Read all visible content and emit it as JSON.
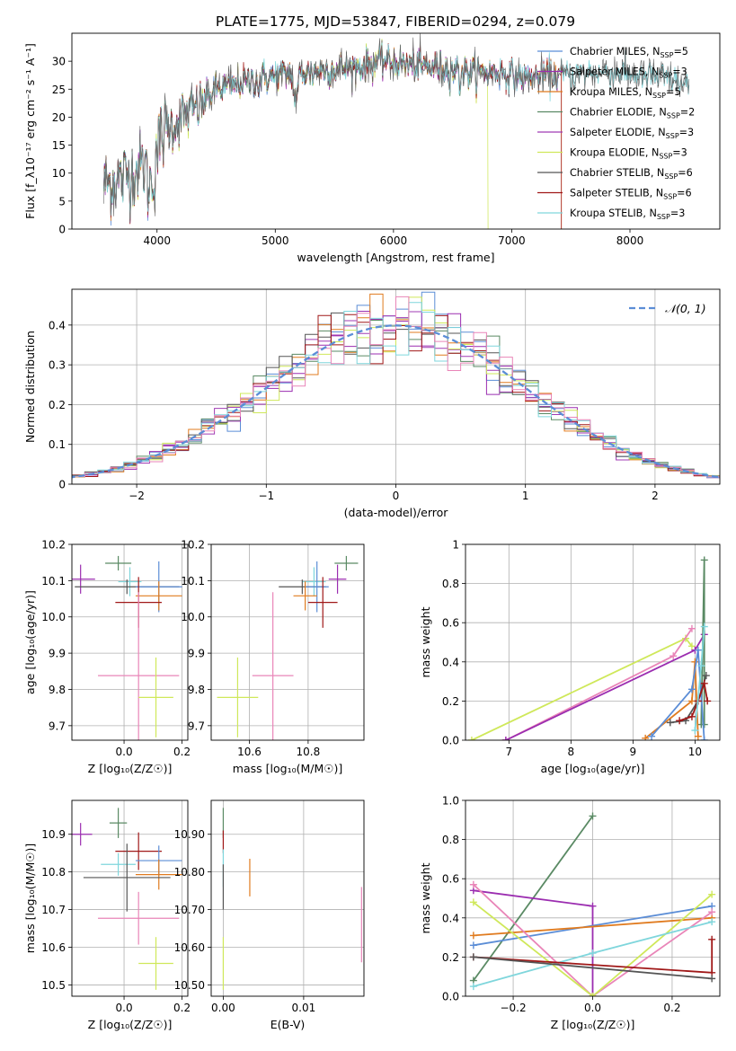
{
  "figure": {
    "title": "PLATE=1775, MJD=53847, FIBERID=0294, z=0.079"
  },
  "colors": {
    "Chabrier MILES": "#5b8dd6",
    "Salpeter MILES": "#9b2db0",
    "Kroupa MILES": "#e07b1f",
    "Chabrier ELODIE": "#5a8a64",
    "Salpeter ELODIE": "#a03bb4",
    "Kroupa ELODIE": "#cfe85a",
    "Chabrier STELIB": "#555555",
    "Salpeter STELIB": "#a01818",
    "Kroupa STELIB": "#7fd6dc",
    "pink": "#e985b8",
    "gauss": "#5b8dd6"
  },
  "chart_data": [
    {
      "id": "spectrum",
      "type": "line",
      "xlabel": "wavelength [Angstrom, rest frame]",
      "ylabel": "Flux [f_λ10⁻¹⁷ erg cm⁻² s⁻¹ A⁻¹]",
      "xlim": [
        3280,
        8760
      ],
      "ylim": [
        0,
        35
      ],
      "xticks": [
        4000,
        5000,
        6000,
        7000,
        8000
      ],
      "yticks": [
        0,
        5,
        10,
        15,
        20,
        25,
        30
      ],
      "legend_position": "upper-right",
      "legend": [
        {
          "text": "Chabrier MILES, N",
          "sub": "SSP",
          "suffix": "=5",
          "color": "#5b8dd6"
        },
        {
          "text": "Salpeter MILES, N",
          "sub": "SSP",
          "suffix": "=3",
          "color": "#9b2db0"
        },
        {
          "text": "Kroupa MILES, N",
          "sub": "SSP",
          "suffix": "=5",
          "color": "#e07b1f"
        },
        {
          "text": "Chabrier ELODIE, N",
          "sub": "SSP",
          "suffix": "=2",
          "color": "#5a8a64"
        },
        {
          "text": "Salpeter ELODIE, N",
          "sub": "SSP",
          "suffix": "=3",
          "color": "#a03bb4"
        },
        {
          "text": "Kroupa ELODIE, N",
          "sub": "SSP",
          "suffix": "=3",
          "color": "#cfe85a"
        },
        {
          "text": "Chabrier STELIB, N",
          "sub": "SSP",
          "suffix": "=6",
          "color": "#555555"
        },
        {
          "text": "Salpeter STELIB, N",
          "sub": "SSP",
          "suffix": "=6",
          "color": "#a01818"
        },
        {
          "text": "Kroupa STELIB, N",
          "sub": "SSP",
          "suffix": "=3",
          "color": "#7fd6dc"
        }
      ],
      "continuum": {
        "x": [
          3550,
          3700,
          3850,
          3950,
          4050,
          4200,
          4350,
          4500,
          4700,
          4900,
          5100,
          5300,
          5500,
          5700,
          5900,
          6100,
          6300,
          6500,
          6700,
          6900,
          7100,
          7300,
          7500,
          7700,
          7900,
          8100,
          8300,
          8500
        ],
        "y": [
          8,
          9,
          11,
          12,
          17,
          20,
          22,
          25,
          26,
          27,
          27.5,
          28,
          28.5,
          29,
          30,
          29.5,
          29,
          28.5,
          28,
          28,
          27,
          27.5,
          27.5,
          28,
          28,
          27.5,
          27,
          25.5
        ]
      },
      "model_range": [
        3550,
        8500
      ],
      "models": [
        {
          "name": "Chabrier MILES",
          "drop_at": null,
          "xmax": 7400
        },
        {
          "name": "Salpeter MILES",
          "drop_at": null,
          "xmax": 7400
        },
        {
          "name": "Kroupa MILES",
          "drop_at": 7420,
          "xmax": 7420
        },
        {
          "name": "Chabrier ELODIE",
          "drop_at": null,
          "xmax": 6800
        },
        {
          "name": "Salpeter ELODIE",
          "drop_at": null,
          "xmax": 6800
        },
        {
          "name": "Kroupa ELODIE",
          "drop_at": 6800,
          "xmax": 6800
        },
        {
          "name": "Chabrier STELIB",
          "drop_at": null,
          "xmax": 8500
        },
        {
          "name": "Salpeter STELIB",
          "drop_at": 7420,
          "xmax": 7420
        },
        {
          "name": "Kroupa STELIB",
          "drop_at": null,
          "xmax": 8500
        }
      ]
    },
    {
      "id": "residuals",
      "type": "line",
      "xlabel": "(data-model)/error",
      "ylabel": "Normed distribution",
      "xlim": [
        -2.5,
        2.5
      ],
      "ylim": [
        0,
        0.49
      ],
      "xticks": [
        -2,
        -1,
        0,
        1,
        2
      ],
      "yticks": [
        0,
        0.1,
        0.2,
        0.3,
        0.4
      ],
      "grid": true,
      "legend_position": "upper-right",
      "gauss_label": "𝒩(0, 1)",
      "bin_width": 0.1,
      "series_colors": [
        "#5b8dd6",
        "#9b2db0",
        "#e07b1f",
        "#5a8a64",
        "#a03bb4",
        "#cfe85a",
        "#555555",
        "#a01818",
        "#7fd6dc",
        "#e985b8"
      ]
    },
    {
      "id": "age_vs_Z",
      "type": "scatter",
      "xlabel": "Z [log₁₀(Z/Z☉)]",
      "ylabel": "age  [log₁₀(age/yr)]",
      "xlim": [
        -0.18,
        0.22
      ],
      "ylim": [
        9.66,
        10.2
      ],
      "xticks": [
        0.0,
        0.2
      ],
      "yticks": [
        9.7,
        9.8,
        9.9,
        10.0,
        10.1,
        10.2
      ],
      "grid": true,
      "points": [
        {
          "x": -0.02,
          "y": 10.148,
          "xerr": 0.045,
          "yerr": 0.02,
          "color": "#5a8a64"
        },
        {
          "x": -0.15,
          "y": 10.104,
          "xerr": 0.05,
          "yerr": 0.04,
          "color": "#9b2db0"
        },
        {
          "x": 0.02,
          "y": 10.097,
          "xerr": 0.04,
          "yerr": 0.04,
          "color": "#7fd6dc"
        },
        {
          "x": 0.01,
          "y": 10.083,
          "xerr": 0.18,
          "yerr": 0.02,
          "color": "#555555"
        },
        {
          "x": 0.12,
          "y": 10.083,
          "xerr": 0.08,
          "yerr": 0.07,
          "color": "#5b8dd6"
        },
        {
          "x": 0.12,
          "y": 10.058,
          "xerr": 0.08,
          "yerr": 0.04,
          "color": "#e07b1f"
        },
        {
          "x": 0.05,
          "y": 10.04,
          "xerr": 0.08,
          "yerr": 0.07,
          "color": "#a01818"
        },
        {
          "x": 0.05,
          "y": 9.838,
          "xerr": 0.14,
          "yerr": 0.23,
          "color": "#e985b8"
        },
        {
          "x": 0.11,
          "y": 9.778,
          "xerr": 0.06,
          "yerr": 0.11,
          "color": "#cfe85a"
        }
      ]
    },
    {
      "id": "age_vs_mass",
      "type": "scatter",
      "xlabel": "mass [log₁₀(M/M☉)]",
      "ylabel": "",
      "xlim": [
        10.47,
        10.99
      ],
      "ylim": [
        9.66,
        10.2
      ],
      "xticks": [
        10.6,
        10.8
      ],
      "yticks": [
        9.7,
        9.8,
        9.9,
        10.0,
        10.1,
        10.2
      ],
      "grid": true,
      "points": [
        {
          "x": 10.93,
          "y": 10.148,
          "xerr": 0.04,
          "yerr": 0.02,
          "color": "#5a8a64"
        },
        {
          "x": 10.9,
          "y": 10.104,
          "xerr": 0.03,
          "yerr": 0.04,
          "color": "#9b2db0"
        },
        {
          "x": 10.82,
          "y": 10.097,
          "xerr": 0.04,
          "yerr": 0.04,
          "color": "#7fd6dc"
        },
        {
          "x": 10.78,
          "y": 10.083,
          "xerr": 0.08,
          "yerr": 0.02,
          "color": "#555555"
        },
        {
          "x": 10.83,
          "y": 10.083,
          "xerr": 0.04,
          "yerr": 0.07,
          "color": "#5b8dd6"
        },
        {
          "x": 10.79,
          "y": 10.058,
          "xerr": 0.04,
          "yerr": 0.04,
          "color": "#e07b1f"
        },
        {
          "x": 10.85,
          "y": 10.04,
          "xerr": 0.05,
          "yerr": 0.07,
          "color": "#a01818"
        },
        {
          "x": 10.68,
          "y": 9.838,
          "xerr": 0.07,
          "yerr": 0.23,
          "color": "#e985b8"
        },
        {
          "x": 10.56,
          "y": 9.778,
          "xerr": 0.07,
          "yerr": 0.11,
          "color": "#cfe85a"
        }
      ]
    },
    {
      "id": "weight_vs_age",
      "type": "line",
      "xlabel": "age  [log₁₀(age/yr)]",
      "ylabel": "mass weight",
      "xlim": [
        6.3,
        10.4
      ],
      "ylim": [
        0,
        1.0
      ],
      "xticks": [
        7,
        8,
        9,
        10
      ],
      "yticks": [
        0.0,
        0.2,
        0.4,
        0.6,
        0.8,
        1.0
      ],
      "grid": true,
      "series": [
        {
          "color": "#cfe85a",
          "x": [
            6.4,
            9.85,
            9.95
          ],
          "y": [
            0.0,
            0.52,
            0.48
          ]
        },
        {
          "color": "#e985b8",
          "x": [
            6.95,
            9.65,
            9.95
          ],
          "y": [
            0.0,
            0.43,
            0.57
          ]
        },
        {
          "color": "#9b2db0",
          "x": [
            6.95,
            10.0,
            10.15
          ],
          "y": [
            0.0,
            0.46,
            0.54
          ]
        },
        {
          "color": "#5a8a64",
          "x": [
            10.1,
            10.15,
            10.15
          ],
          "y": [
            0.08,
            0.92,
            0.08
          ]
        },
        {
          "color": "#e07b1f",
          "x": [
            9.2,
            9.95,
            10.0,
            10.05
          ],
          "y": [
            0.01,
            0.2,
            0.4,
            0.02
          ]
        },
        {
          "color": "#5b8dd6",
          "x": [
            9.3,
            9.95,
            10.05,
            10.15
          ],
          "y": [
            0.02,
            0.26,
            0.46,
            0.0
          ]
        },
        {
          "color": "#555555",
          "x": [
            9.6,
            9.85,
            10.05,
            10.18
          ],
          "y": [
            0.09,
            0.1,
            0.2,
            0.33
          ]
        },
        {
          "color": "#a01818",
          "x": [
            9.75,
            9.95,
            10.05,
            10.15,
            10.2
          ],
          "y": [
            0.1,
            0.12,
            0.2,
            0.29,
            0.2
          ]
        },
        {
          "color": "#7fd6dc",
          "x": [
            10.0,
            10.1,
            10.15
          ],
          "y": [
            0.05,
            0.38,
            0.58
          ]
        }
      ]
    },
    {
      "id": "mass_vs_Z",
      "type": "scatter",
      "xlabel": "Z [log₁₀(Z/Z☉)]",
      "ylabel": "mass [log₁₀(M/M☉)]",
      "xlim": [
        -0.18,
        0.22
      ],
      "ylim": [
        10.47,
        10.99
      ],
      "xticks": [
        0.0,
        0.2
      ],
      "yticks": [
        10.5,
        10.6,
        10.7,
        10.8,
        10.9
      ],
      "grid": true,
      "points": [
        {
          "x": -0.02,
          "y": 10.93,
          "xerr": 0.03,
          "yerr": 0.04,
          "color": "#5a8a64"
        },
        {
          "x": -0.15,
          "y": 10.9,
          "xerr": 0.04,
          "yerr": 0.03,
          "color": "#9b2db0"
        },
        {
          "x": 0.05,
          "y": 10.855,
          "xerr": 0.08,
          "yerr": 0.05,
          "color": "#a01818"
        },
        {
          "x": 0.12,
          "y": 10.83,
          "xerr": 0.08,
          "yerr": 0.04,
          "color": "#5b8dd6"
        },
        {
          "x": -0.02,
          "y": 10.82,
          "xerr": 0.06,
          "yerr": 0.03,
          "color": "#7fd6dc"
        },
        {
          "x": 0.12,
          "y": 10.793,
          "xerr": 0.08,
          "yerr": 0.04,
          "color": "#e07b1f"
        },
        {
          "x": 0.01,
          "y": 10.785,
          "xerr": 0.15,
          "yerr": 0.09,
          "color": "#555555"
        },
        {
          "x": 0.05,
          "y": 10.677,
          "xerr": 0.14,
          "yerr": 0.07,
          "color": "#e985b8"
        },
        {
          "x": 0.11,
          "y": 10.557,
          "xerr": 0.06,
          "yerr": 0.07,
          "color": "#cfe85a"
        }
      ]
    },
    {
      "id": "mass_vs_EBV",
      "type": "scatter",
      "xlabel": "E(B-V)",
      "ylabel": "",
      "xlim": [
        -0.0015,
        0.0175
      ],
      "ylim": [
        10.47,
        10.99
      ],
      "xticks": [
        0.0,
        0.01
      ],
      "yticks": [
        10.5,
        10.6,
        10.7,
        10.8,
        10.9
      ],
      "grid": true,
      "points": [
        {
          "x": 0.0,
          "y": 10.93,
          "xerr": 0.0,
          "yerr": 0.04,
          "color": "#5a8a64"
        },
        {
          "x": 0.0,
          "y": 10.88,
          "xerr": 0.0,
          "yerr": 0.03,
          "color": "#a01818"
        },
        {
          "x": 0.0,
          "y": 10.81,
          "xerr": 0.0,
          "yerr": 0.05,
          "color": "#7fd6dc"
        },
        {
          "x": 0.0,
          "y": 10.76,
          "xerr": 0.0,
          "yerr": 0.06,
          "color": "#555555"
        },
        {
          "x": 0.0033,
          "y": 10.785,
          "xerr": 0.0,
          "yerr": 0.05,
          "color": "#e07b1f"
        },
        {
          "x": 0.0,
          "y": 10.557,
          "xerr": 0.0,
          "yerr": 0.07,
          "color": "#cfe85a"
        },
        {
          "x": 0.0172,
          "y": 10.66,
          "xerr": 0.0,
          "yerr": 0.1,
          "color": "#e985b8"
        }
      ]
    },
    {
      "id": "weight_vs_Z",
      "type": "line",
      "xlabel": "Z [log₁₀(Z/Z☉)]",
      "ylabel": "mass weight",
      "xlim": [
        -0.32,
        0.32
      ],
      "ylim": [
        0,
        1.0
      ],
      "xticks": [
        -0.2,
        0.0,
        0.2
      ],
      "yticks": [
        0.0,
        0.2,
        0.4,
        0.6,
        0.8,
        1.0
      ],
      "grid": true,
      "series": [
        {
          "color": "#5a8a64",
          "x": [
            -0.3,
            0.0
          ],
          "y": [
            0.08,
            0.92
          ]
        },
        {
          "color": "#9b2db0",
          "x": [
            -0.3,
            0.0,
            0.0
          ],
          "y": [
            0.54,
            0.46,
            0.0
          ]
        },
        {
          "color": "#5b8dd6",
          "x": [
            -0.3,
            0.3
          ],
          "y": [
            0.26,
            0.46
          ]
        },
        {
          "color": "#e07b1f",
          "x": [
            -0.3,
            0.3
          ],
          "y": [
            0.31,
            0.4
          ]
        },
        {
          "color": "#e985b8",
          "x": [
            -0.3,
            0.0,
            0.3
          ],
          "y": [
            0.57,
            0.0,
            0.43
          ]
        },
        {
          "color": "#cfe85a",
          "x": [
            -0.3,
            0.0,
            0.3
          ],
          "y": [
            0.48,
            0.0,
            0.52
          ]
        },
        {
          "color": "#7fd6dc",
          "x": [
            -0.3,
            0.0,
            0.3
          ],
          "y": [
            0.05,
            0.22,
            0.38
          ]
        },
        {
          "color": "#a01818",
          "x": [
            -0.3,
            0.3,
            0.3
          ],
          "y": [
            0.2,
            0.12,
            0.29
          ]
        },
        {
          "color": "#555555",
          "x": [
            -0.3,
            0.3
          ],
          "y": [
            0.2,
            0.09
          ]
        }
      ]
    }
  ]
}
